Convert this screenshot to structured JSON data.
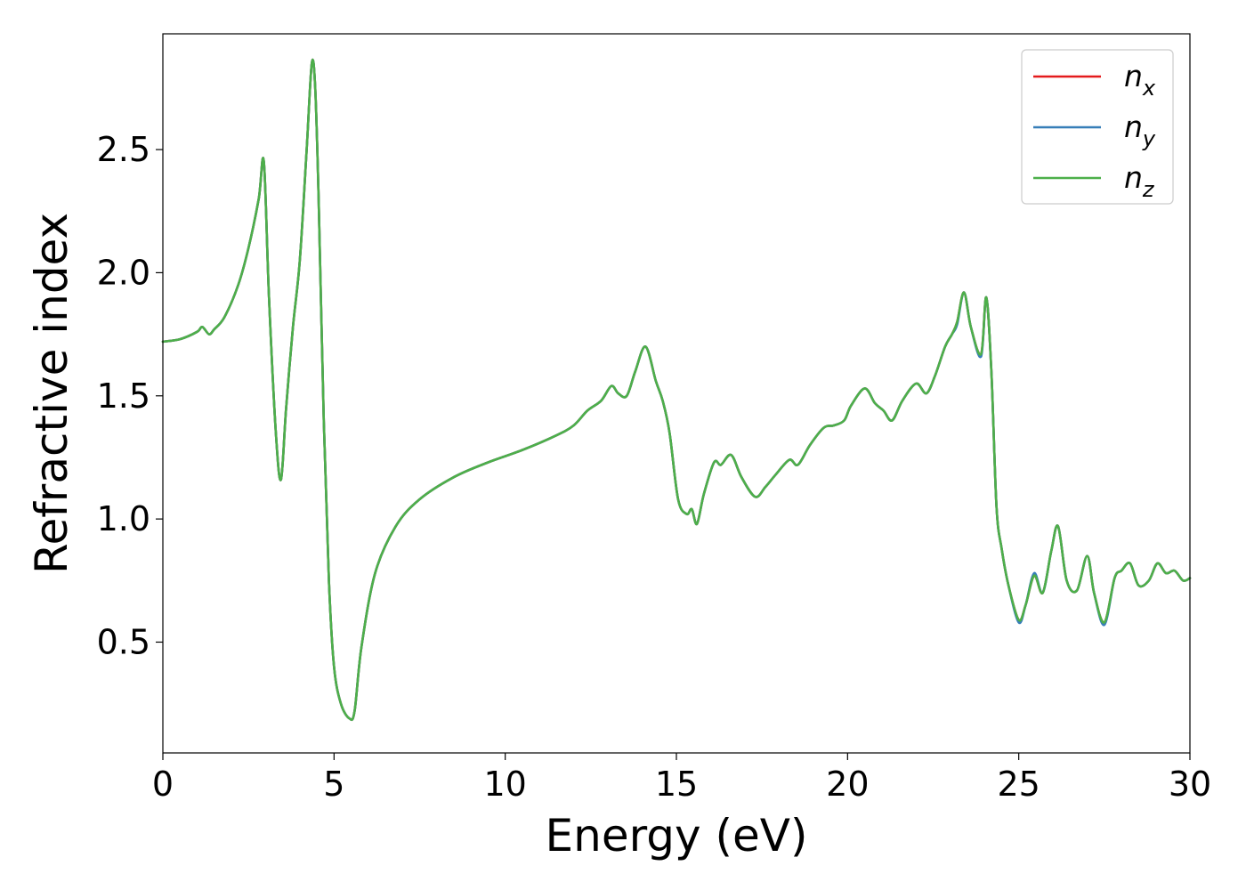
{
  "chart_data": {
    "type": "line",
    "xlabel": "Energy (eV)",
    "ylabel": "Refractive index",
    "xlim": [
      0,
      30
    ],
    "ylim": [
      0.05,
      2.97
    ],
    "xticks": [
      0,
      5,
      10,
      15,
      20,
      25,
      30
    ],
    "xtick_labels": [
      "0",
      "5",
      "10",
      "15",
      "20",
      "25",
      "30"
    ],
    "yticks": [
      0.5,
      1.0,
      1.5,
      2.0,
      2.5
    ],
    "ytick_labels": [
      "0.5",
      "1.0",
      "1.5",
      "2.0",
      "2.5"
    ],
    "grid": false,
    "legend_position": "top-right",
    "x": [
      0,
      0.5,
      1.0,
      1.15,
      1.35,
      1.5,
      1.8,
      2.2,
      2.5,
      2.8,
      2.95,
      3.1,
      3.3,
      3.45,
      3.6,
      3.8,
      4.0,
      4.2,
      4.35,
      4.45,
      4.55,
      4.7,
      4.85,
      5.0,
      5.2,
      5.45,
      5.6,
      5.8,
      6.2,
      6.8,
      7.5,
      8.5,
      9.5,
      10.5,
      11.5,
      12.0,
      12.4,
      12.8,
      13.1,
      13.3,
      13.55,
      13.8,
      14.1,
      14.4,
      14.6,
      14.8,
      15.05,
      15.3,
      15.45,
      15.6,
      15.8,
      16.1,
      16.3,
      16.6,
      16.9,
      17.3,
      17.6,
      17.9,
      18.3,
      18.55,
      18.9,
      19.3,
      19.6,
      19.9,
      20.1,
      20.5,
      20.8,
      21.05,
      21.3,
      21.6,
      22.0,
      22.3,
      22.55,
      22.85,
      23.05,
      23.2,
      23.4,
      23.6,
      23.9,
      24.05,
      24.2,
      24.35,
      24.5,
      24.7,
      25.0,
      25.2,
      25.45,
      25.7,
      25.95,
      26.15,
      26.4,
      26.7,
      27.0,
      27.2,
      27.5,
      27.8,
      28.0,
      28.25,
      28.5,
      28.8,
      29.05,
      29.3,
      29.55,
      29.8,
      30.0
    ],
    "series": [
      {
        "name": "n",
        "subscript": "x",
        "color": "#e41a1c",
        "values": [
          1.72,
          1.73,
          1.76,
          1.78,
          1.75,
          1.77,
          1.82,
          1.95,
          2.1,
          2.3,
          2.45,
          1.9,
          1.35,
          1.16,
          1.45,
          1.78,
          2.05,
          2.5,
          2.85,
          2.75,
          2.3,
          1.4,
          0.75,
          0.4,
          0.25,
          0.19,
          0.22,
          0.48,
          0.78,
          0.97,
          1.08,
          1.17,
          1.23,
          1.28,
          1.34,
          1.38,
          1.44,
          1.48,
          1.54,
          1.51,
          1.5,
          1.6,
          1.7,
          1.56,
          1.48,
          1.35,
          1.08,
          1.02,
          1.04,
          0.98,
          1.1,
          1.23,
          1.22,
          1.26,
          1.17,
          1.09,
          1.13,
          1.18,
          1.24,
          1.22,
          1.3,
          1.37,
          1.38,
          1.4,
          1.46,
          1.53,
          1.47,
          1.44,
          1.4,
          1.48,
          1.55,
          1.51,
          1.58,
          1.7,
          1.75,
          1.8,
          1.92,
          1.78,
          1.67,
          1.9,
          1.6,
          1.05,
          0.88,
          0.73,
          0.59,
          0.65,
          0.77,
          0.7,
          0.87,
          0.97,
          0.75,
          0.71,
          0.85,
          0.7,
          0.58,
          0.76,
          0.79,
          0.82,
          0.73,
          0.75,
          0.82,
          0.78,
          0.79,
          0.75,
          0.76
        ]
      },
      {
        "name": "n",
        "subscript": "y",
        "color": "#377eb8",
        "values": [
          1.72,
          1.73,
          1.76,
          1.78,
          1.75,
          1.77,
          1.82,
          1.95,
          2.1,
          2.3,
          2.45,
          1.9,
          1.35,
          1.16,
          1.45,
          1.78,
          2.05,
          2.5,
          2.85,
          2.75,
          2.3,
          1.4,
          0.75,
          0.4,
          0.25,
          0.19,
          0.22,
          0.48,
          0.78,
          0.97,
          1.08,
          1.17,
          1.23,
          1.28,
          1.34,
          1.38,
          1.44,
          1.48,
          1.54,
          1.51,
          1.5,
          1.6,
          1.7,
          1.56,
          1.48,
          1.35,
          1.08,
          1.02,
          1.04,
          0.98,
          1.1,
          1.23,
          1.22,
          1.26,
          1.17,
          1.09,
          1.13,
          1.18,
          1.24,
          1.22,
          1.3,
          1.37,
          1.38,
          1.4,
          1.46,
          1.53,
          1.47,
          1.44,
          1.4,
          1.48,
          1.55,
          1.51,
          1.58,
          1.7,
          1.75,
          1.79,
          1.92,
          1.78,
          1.66,
          1.9,
          1.6,
          1.05,
          0.88,
          0.73,
          0.58,
          0.65,
          0.78,
          0.7,
          0.87,
          0.97,
          0.75,
          0.71,
          0.85,
          0.7,
          0.57,
          0.76,
          0.79,
          0.82,
          0.73,
          0.75,
          0.82,
          0.78,
          0.79,
          0.75,
          0.76
        ]
      },
      {
        "name": "n",
        "subscript": "z",
        "color": "#4daf4a",
        "values": [
          1.72,
          1.73,
          1.76,
          1.78,
          1.75,
          1.77,
          1.82,
          1.95,
          2.1,
          2.3,
          2.45,
          1.9,
          1.35,
          1.16,
          1.45,
          1.78,
          2.05,
          2.5,
          2.85,
          2.75,
          2.3,
          1.4,
          0.75,
          0.4,
          0.25,
          0.19,
          0.22,
          0.48,
          0.78,
          0.97,
          1.08,
          1.17,
          1.23,
          1.28,
          1.34,
          1.38,
          1.44,
          1.48,
          1.54,
          1.51,
          1.5,
          1.6,
          1.7,
          1.56,
          1.48,
          1.35,
          1.08,
          1.02,
          1.04,
          0.98,
          1.1,
          1.23,
          1.22,
          1.26,
          1.17,
          1.09,
          1.13,
          1.18,
          1.24,
          1.22,
          1.3,
          1.37,
          1.38,
          1.4,
          1.46,
          1.53,
          1.47,
          1.44,
          1.4,
          1.48,
          1.55,
          1.51,
          1.58,
          1.7,
          1.75,
          1.8,
          1.92,
          1.78,
          1.67,
          1.9,
          1.6,
          1.05,
          0.88,
          0.73,
          0.59,
          0.65,
          0.77,
          0.7,
          0.87,
          0.97,
          0.75,
          0.71,
          0.85,
          0.7,
          0.58,
          0.76,
          0.79,
          0.82,
          0.73,
          0.75,
          0.82,
          0.78,
          0.79,
          0.75,
          0.76
        ]
      }
    ]
  }
}
